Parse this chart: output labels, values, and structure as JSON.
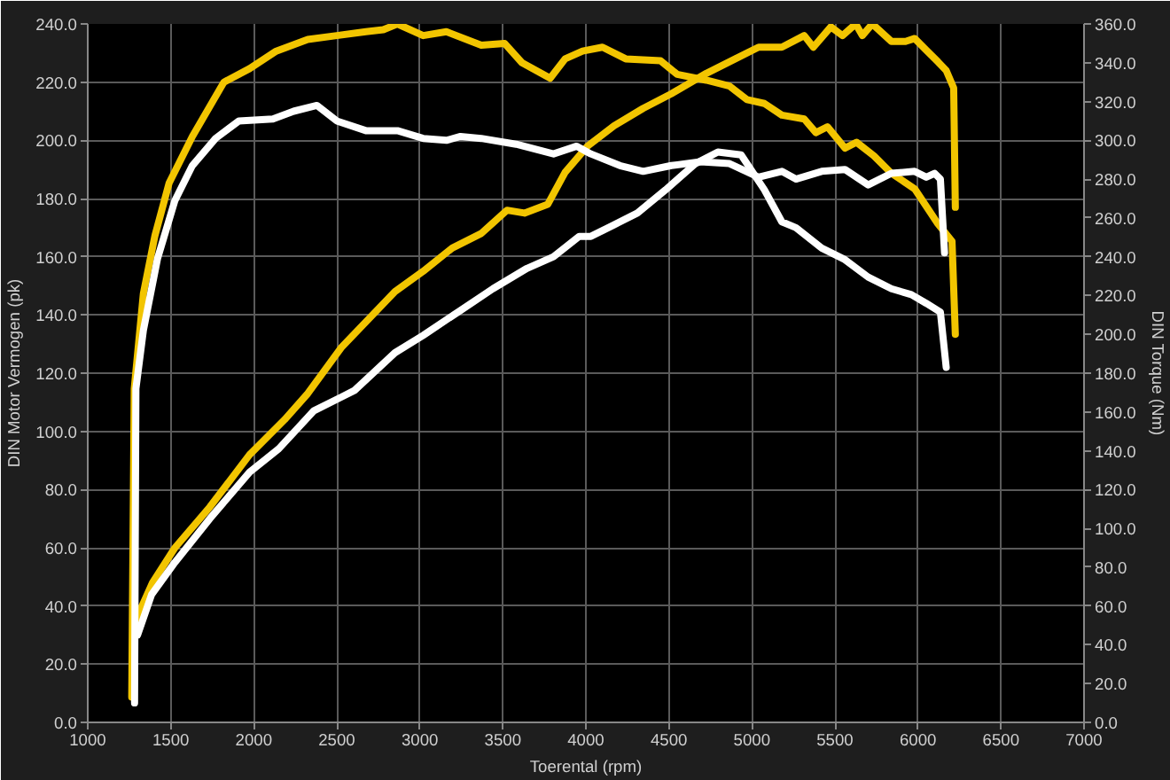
{
  "chart_data": {
    "type": "line",
    "xlabel": "Toerental (rpm)",
    "ylabel": "DIN Motor Vermogen (pk)",
    "y2label": "DIN Torque (Nm)",
    "xlim": [
      1000,
      7000
    ],
    "xticks": [
      1000,
      1500,
      2000,
      2500,
      3000,
      3500,
      4000,
      4500,
      5000,
      5500,
      6000,
      6500,
      7000
    ],
    "ylim": [
      0,
      240
    ],
    "yticks": [
      {
        "value": 0,
        "label": "0.0"
      },
      {
        "value": 20,
        "label": "20.0"
      },
      {
        "value": 40,
        "label": "40.0"
      },
      {
        "value": 60,
        "label": "60.0"
      },
      {
        "value": 80,
        "label": "80.0"
      },
      {
        "value": 100,
        "label": "100.0"
      },
      {
        "value": 120,
        "label": "120.0"
      },
      {
        "value": 140,
        "label": "140.0"
      },
      {
        "value": 160,
        "label": "160.0"
      },
      {
        "value": 180,
        "label": "180.0"
      },
      {
        "value": 200,
        "label": "200.0"
      },
      {
        "value": 220,
        "label": "220.0"
      },
      {
        "value": 240,
        "label": "240.0"
      }
    ],
    "y2lim": [
      0,
      360
    ],
    "y2ticks": [
      {
        "value": 0,
        "label": "0.0"
      },
      {
        "value": 20,
        "label": "20.0"
      },
      {
        "value": 40,
        "label": "40.0"
      },
      {
        "value": 60,
        "label": "60.0"
      },
      {
        "value": 80,
        "label": "80.0"
      },
      {
        "value": 100,
        "label": "100.0"
      },
      {
        "value": 120,
        "label": "120.0"
      },
      {
        "value": 140,
        "label": "140.0"
      },
      {
        "value": 160,
        "label": "160.0"
      },
      {
        "value": 180,
        "label": "180.0"
      },
      {
        "value": 200,
        "label": "200.0"
      },
      {
        "value": 220,
        "label": "220.0"
      },
      {
        "value": 240,
        "label": "240.0"
      },
      {
        "value": 260,
        "label": "260.0"
      },
      {
        "value": 280,
        "label": "280.0"
      },
      {
        "value": 300,
        "label": "300.0"
      },
      {
        "value": 320,
        "label": "320.0"
      },
      {
        "value": 340,
        "label": "340.0"
      },
      {
        "value": 360,
        "label": "360.0"
      }
    ],
    "grid": true,
    "line_style": "solid",
    "series": [
      {
        "color": "#f2c500",
        "x": [
          1280,
          1390,
          1525,
          1735,
          1975,
          2185,
          2325,
          2530,
          2850,
          3020,
          3195,
          3370,
          3525,
          3630,
          3770,
          3875,
          4010,
          4170,
          4345,
          4515,
          4725,
          4900,
          5040,
          5180,
          5315,
          5370,
          5475,
          5545,
          5625,
          5665,
          5725,
          5840,
          5925,
          5980,
          6050,
          6120,
          6170,
          6215,
          6225
        ],
        "values": [
          34,
          48,
          60,
          74,
          92,
          104,
          113,
          129,
          148,
          155,
          163,
          168,
          176,
          175,
          178,
          189,
          198,
          205,
          211,
          216,
          223,
          228,
          232,
          232,
          236,
          232,
          239,
          236,
          240,
          236,
          240,
          234,
          234,
          235,
          231,
          227,
          224,
          218,
          177
        ]
      },
      {
        "color": "#f2c500",
        "axis": "y2",
        "x": [
          1265,
          1280,
          1335,
          1405,
          1490,
          1630,
          1820,
          1975,
          2135,
          2325,
          2500,
          2675,
          2780,
          2865,
          3020,
          3160,
          3370,
          3510,
          3615,
          3785,
          3875,
          3980,
          4100,
          4240,
          4450,
          4550,
          4725,
          4865,
          4970,
          5075,
          5180,
          5315,
          5385,
          5455,
          5560,
          5630,
          5735,
          5840,
          5980,
          6120,
          6205,
          6225
        ],
        "values": [
          13,
          172,
          221,
          251,
          278,
          302,
          330,
          337,
          346,
          352,
          354,
          356,
          357,
          360,
          354,
          356,
          349,
          350,
          340,
          332,
          342,
          346,
          348,
          342,
          341,
          334,
          331,
          328,
          321,
          319,
          313,
          311,
          304,
          307,
          296,
          299,
          292,
          283,
          275,
          257,
          248,
          200
        ]
      },
      {
        "color": "#ffffff",
        "x": [
          1300,
          1385,
          1525,
          1735,
          1975,
          2150,
          2360,
          2535,
          2605,
          2850,
          3020,
          3230,
          3440,
          3645,
          3805,
          3960,
          4030,
          4170,
          4310,
          4480,
          4660,
          4795,
          4935,
          5075,
          5180,
          5265,
          5420,
          5560,
          5700,
          5840,
          5960,
          6050,
          6135,
          6170
        ],
        "values": [
          30,
          44,
          55,
          70,
          86,
          94,
          107,
          112,
          114,
          127,
          133,
          141,
          149,
          156,
          160,
          167,
          167,
          171,
          175,
          183,
          192,
          196,
          195,
          183,
          172,
          170,
          163,
          159,
          153,
          149,
          147,
          144,
          141,
          122
        ]
      },
      {
        "color": "#ffffff",
        "axis": "y2",
        "x": [
          1282,
          1290,
          1335,
          1420,
          1525,
          1630,
          1770,
          1910,
          2115,
          2240,
          2380,
          2500,
          2675,
          2865,
          3020,
          3160,
          3245,
          3370,
          3580,
          3805,
          3945,
          4030,
          4205,
          4345,
          4515,
          4690,
          4865,
          5040,
          5180,
          5265,
          5420,
          5560,
          5700,
          5840,
          5980,
          6050,
          6100,
          6135,
          6160
        ],
        "values": [
          10,
          172,
          202,
          239,
          269,
          287,
          301,
          310,
          311,
          315,
          318,
          310,
          305,
          305,
          301,
          300,
          302,
          301,
          298,
          293,
          297,
          293,
          287,
          284,
          287,
          289,
          288,
          281,
          284,
          280,
          284,
          285,
          277,
          283,
          284,
          281,
          283,
          280,
          242
        ]
      }
    ]
  }
}
